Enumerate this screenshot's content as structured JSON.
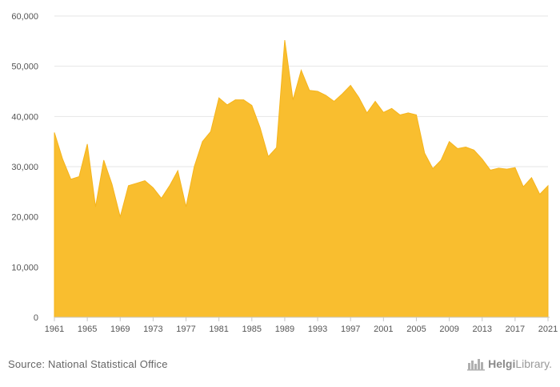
{
  "chart_data": {
    "type": "area",
    "x": [
      1961,
      1962,
      1963,
      1964,
      1965,
      1966,
      1967,
      1968,
      1969,
      1970,
      1971,
      1972,
      1973,
      1974,
      1975,
      1976,
      1977,
      1978,
      1979,
      1980,
      1981,
      1982,
      1983,
      1984,
      1985,
      1986,
      1987,
      1988,
      1989,
      1990,
      1991,
      1992,
      1993,
      1994,
      1995,
      1996,
      1997,
      1998,
      1999,
      2000,
      2001,
      2002,
      2003,
      2004,
      2005,
      2006,
      2007,
      2008,
      2009,
      2010,
      2011,
      2012,
      2013,
      2014,
      2015,
      2016,
      2017,
      2018,
      2019,
      2020,
      2021
    ],
    "values": [
      36800,
      31500,
      27500,
      28000,
      34500,
      22000,
      31300,
      26500,
      20000,
      26200,
      26700,
      27200,
      25800,
      23700,
      26200,
      29200,
      22000,
      30000,
      35000,
      37000,
      43700,
      42300,
      43300,
      43300,
      42200,
      37800,
      32000,
      33800,
      55200,
      43300,
      49200,
      45200,
      45000,
      44200,
      43000,
      44500,
      46200,
      43800,
      40700,
      43000,
      40800,
      41600,
      40300,
      40700,
      40300,
      32700,
      29600,
      31300,
      35000,
      33600,
      33900,
      33300,
      31500,
      29300,
      29700,
      29500,
      29800,
      26000,
      27800,
      24500,
      26200
    ],
    "x_ticks": [
      "1961",
      "1965",
      "1969",
      "1973",
      "1977",
      "1981",
      "1985",
      "1989",
      "1993",
      "1997",
      "2001",
      "2005",
      "2009",
      "2013",
      "2017",
      "2021"
    ],
    "y_ticks": [
      "0",
      "10,000",
      "20,000",
      "30,000",
      "40,000",
      "50,000",
      "60,000"
    ],
    "ylim": [
      0,
      60000
    ],
    "xlim": [
      1961,
      2021
    ],
    "grid": true,
    "title": "",
    "xlabel": "",
    "ylabel": ""
  },
  "colors": {
    "area_fill": "#f9be2f",
    "area_stroke": "#f5b41c"
  },
  "footer": {
    "source": "Source: National Statistical Office",
    "brand_icon": "helgi-library-logo-icon",
    "brand_bold": "Helgi",
    "brand_rest": "Library."
  }
}
